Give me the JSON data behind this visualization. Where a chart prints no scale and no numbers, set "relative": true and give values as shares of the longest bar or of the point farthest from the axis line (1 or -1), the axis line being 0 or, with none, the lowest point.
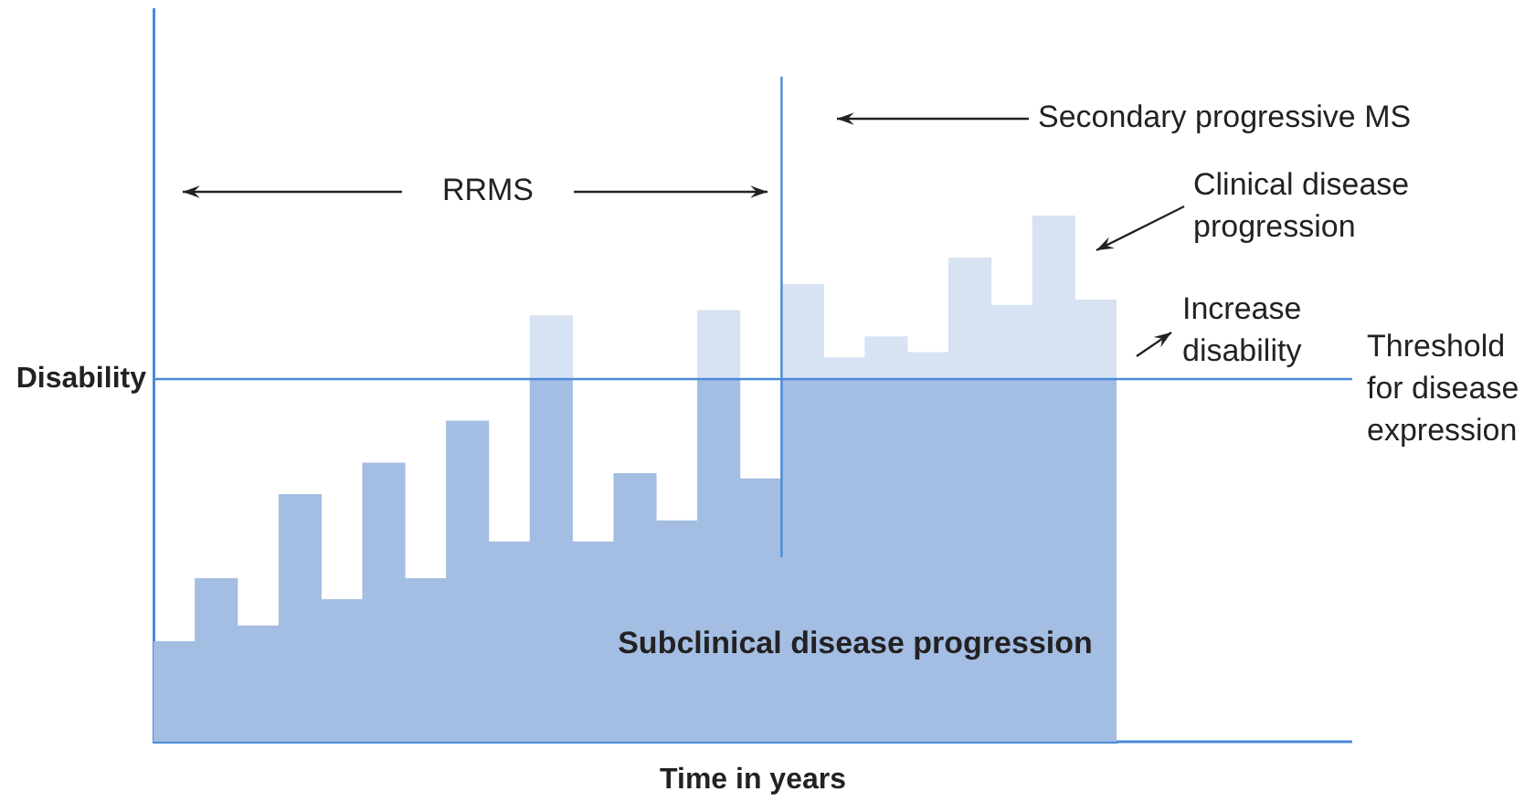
{
  "chart_data": {
    "type": "bar",
    "stacked": true,
    "relative": true,
    "tick_labels": false,
    "grid": false,
    "legend": false,
    "xlabel": "Time in years",
    "ylabel": "Disability",
    "categories": [
      null,
      null,
      null,
      null,
      null,
      null,
      null,
      null,
      null,
      null,
      null,
      null,
      null,
      null,
      null,
      null,
      null,
      null,
      null,
      null,
      null,
      null,
      null
    ],
    "series": [
      {
        "color": "#a4bde3",
        "values": [
          0.19,
          0.31,
          0.22,
          0.47,
          0.27,
          0.53,
          0.31,
          0.61,
          0.38,
          0.69,
          0.38,
          0.51,
          0.42,
          0.69,
          0.5,
          0.69,
          0.69,
          0.69,
          0.69,
          0.69,
          0.69,
          0.69,
          0.69
        ]
      },
      {
        "color": "#d7e2f3",
        "values": [
          null,
          null,
          null,
          null,
          null,
          null,
          null,
          null,
          null,
          0.12,
          null,
          null,
          null,
          0.13,
          null,
          0.18,
          0.04,
          0.08,
          0.05,
          0.23,
          0.14,
          0.31,
          0.15
        ]
      }
    ],
    "ref_lines": [
      {
        "axis": "y",
        "value": 0.69,
        "label": "Threshold for disease expression",
        "color": "#4a8ad8"
      }
    ],
    "annotations": [
      "RRMS",
      "Secondary progressive MS",
      "Clinical disease progression",
      "Increase disability",
      "Subclinical disease progression"
    ]
  }
}
